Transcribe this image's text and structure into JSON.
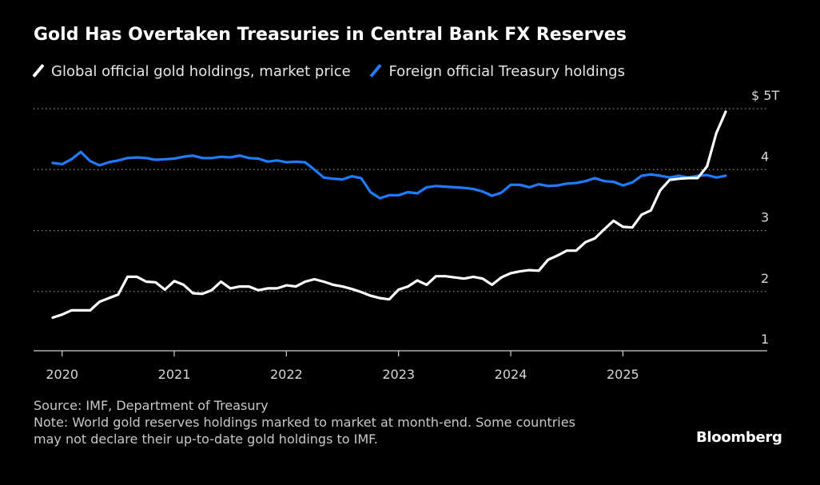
{
  "title": "Gold Has Overtaken Treasuries in Central Bank FX Reserves",
  "legend": [
    {
      "label": "Global official gold holdings, market price",
      "color": "#ffffff"
    },
    {
      "label": "Foreign official Treasury holdings",
      "color": "#1f7cff"
    }
  ],
  "footer": {
    "source": "Source: IMF, Department of Treasury",
    "note_line1": "Note: World gold reserves holdings marked to market at month-end. Some countries",
    "note_line2": "may not declare their up-to-date gold holdings to IMF."
  },
  "brand": "Bloomberg",
  "chart_data": {
    "type": "line",
    "title": "Gold Has Overtaken Treasuries in Central Bank FX Reserves",
    "x_axis": {
      "type": "date",
      "ticks": [
        "2020",
        "2021",
        "2022",
        "2023",
        "2024",
        "2025"
      ],
      "range": [
        "2019-12",
        "2025-12"
      ]
    },
    "y_axis": {
      "unit": "T",
      "ticks": [
        {
          "value": 1,
          "label": "1"
        },
        {
          "value": 2,
          "label": "2"
        },
        {
          "value": 3,
          "label": "3"
        },
        {
          "value": 4,
          "label": "4"
        },
        {
          "value": 5,
          "label": "$ 5T"
        }
      ],
      "range": [
        1,
        5
      ],
      "grid": true,
      "gridlines": [
        2,
        3,
        4,
        5
      ],
      "position": "right"
    },
    "legend_position": "top-left",
    "series": [
      {
        "name": "Global official gold holdings, market price",
        "color": "#ffffff",
        "x": [
          "2019-12",
          "2020-01",
          "2020-02",
          "2020-03",
          "2020-04",
          "2020-05",
          "2020-06",
          "2020-07",
          "2020-08",
          "2020-09",
          "2020-10",
          "2020-11",
          "2020-12",
          "2021-01",
          "2021-02",
          "2021-03",
          "2021-04",
          "2021-05",
          "2021-06",
          "2021-07",
          "2021-08",
          "2021-09",
          "2021-10",
          "2021-11",
          "2021-12",
          "2022-01",
          "2022-02",
          "2022-03",
          "2022-04",
          "2022-05",
          "2022-06",
          "2022-07",
          "2022-08",
          "2022-09",
          "2022-10",
          "2022-11",
          "2022-12",
          "2023-01",
          "2023-02",
          "2023-03",
          "2023-04",
          "2023-05",
          "2023-06",
          "2023-07",
          "2023-08",
          "2023-09",
          "2023-10",
          "2023-11",
          "2023-12",
          "2024-01",
          "2024-02",
          "2024-03",
          "2024-04",
          "2024-05",
          "2024-06",
          "2024-07",
          "2024-08",
          "2024-09",
          "2024-10",
          "2024-11",
          "2024-12",
          "2025-01",
          "2025-02",
          "2025-03",
          "2025-04",
          "2025-05",
          "2025-06",
          "2025-07",
          "2025-08",
          "2025-09",
          "2025-10",
          "2025-11",
          "2025-12"
        ],
        "values": [
          1.57,
          1.62,
          1.69,
          1.69,
          1.69,
          1.83,
          1.89,
          1.95,
          2.24,
          2.24,
          2.16,
          2.15,
          2.03,
          2.17,
          2.11,
          1.97,
          1.96,
          2.02,
          2.16,
          2.05,
          2.08,
          2.08,
          2.02,
          2.05,
          2.05,
          2.1,
          2.08,
          2.16,
          2.2,
          2.16,
          2.11,
          2.08,
          2.04,
          1.99,
          1.93,
          1.89,
          1.87,
          2.03,
          2.08,
          2.18,
          2.11,
          2.25,
          2.25,
          2.23,
          2.21,
          2.24,
          2.21,
          2.11,
          2.23,
          2.3,
          2.33,
          2.35,
          2.34,
          2.52,
          2.59,
          2.67,
          2.67,
          2.81,
          2.87,
          3.02,
          3.16,
          3.06,
          3.05,
          3.26,
          3.33,
          3.66,
          3.83,
          3.85,
          3.86,
          3.86,
          4.05,
          4.6,
          4.95
        ]
      },
      {
        "name": "Foreign official Treasury holdings",
        "color": "#1f7cff",
        "x": [
          "2019-12",
          "2020-01",
          "2020-02",
          "2020-03",
          "2020-04",
          "2020-05",
          "2020-06",
          "2020-07",
          "2020-08",
          "2020-09",
          "2020-10",
          "2020-11",
          "2020-12",
          "2021-01",
          "2021-02",
          "2021-03",
          "2021-04",
          "2021-05",
          "2021-06",
          "2021-07",
          "2021-08",
          "2021-09",
          "2021-10",
          "2021-11",
          "2021-12",
          "2022-01",
          "2022-02",
          "2022-03",
          "2022-04",
          "2022-05",
          "2022-06",
          "2022-07",
          "2022-08",
          "2022-09",
          "2022-10",
          "2022-11",
          "2022-12",
          "2023-01",
          "2023-02",
          "2023-03",
          "2023-04",
          "2023-05",
          "2023-06",
          "2023-07",
          "2023-08",
          "2023-09",
          "2023-10",
          "2023-11",
          "2023-12",
          "2024-01",
          "2024-02",
          "2024-03",
          "2024-04",
          "2024-05",
          "2024-06",
          "2024-07",
          "2024-08",
          "2024-09",
          "2024-10",
          "2024-11",
          "2024-12",
          "2025-01",
          "2025-02",
          "2025-03",
          "2025-04",
          "2025-05",
          "2025-06",
          "2025-07",
          "2025-08",
          "2025-09",
          "2025-10",
          "2025-11",
          "2025-12"
        ],
        "values": [
          4.11,
          4.09,
          4.17,
          4.29,
          4.14,
          4.07,
          4.12,
          4.15,
          4.19,
          4.2,
          4.19,
          4.16,
          4.17,
          4.18,
          4.21,
          4.23,
          4.19,
          4.19,
          4.21,
          4.2,
          4.23,
          4.19,
          4.18,
          4.13,
          4.15,
          4.12,
          4.13,
          4.12,
          4.0,
          3.87,
          3.85,
          3.84,
          3.89,
          3.86,
          3.63,
          3.53,
          3.58,
          3.58,
          3.63,
          3.61,
          3.71,
          3.73,
          3.72,
          3.71,
          3.7,
          3.68,
          3.64,
          3.57,
          3.62,
          3.75,
          3.75,
          3.71,
          3.76,
          3.73,
          3.74,
          3.77,
          3.78,
          3.81,
          3.86,
          3.81,
          3.8,
          3.74,
          3.79,
          3.9,
          3.92,
          3.9,
          3.87,
          3.9,
          3.87,
          3.9,
          3.91,
          3.87,
          3.9
        ]
      }
    ]
  }
}
